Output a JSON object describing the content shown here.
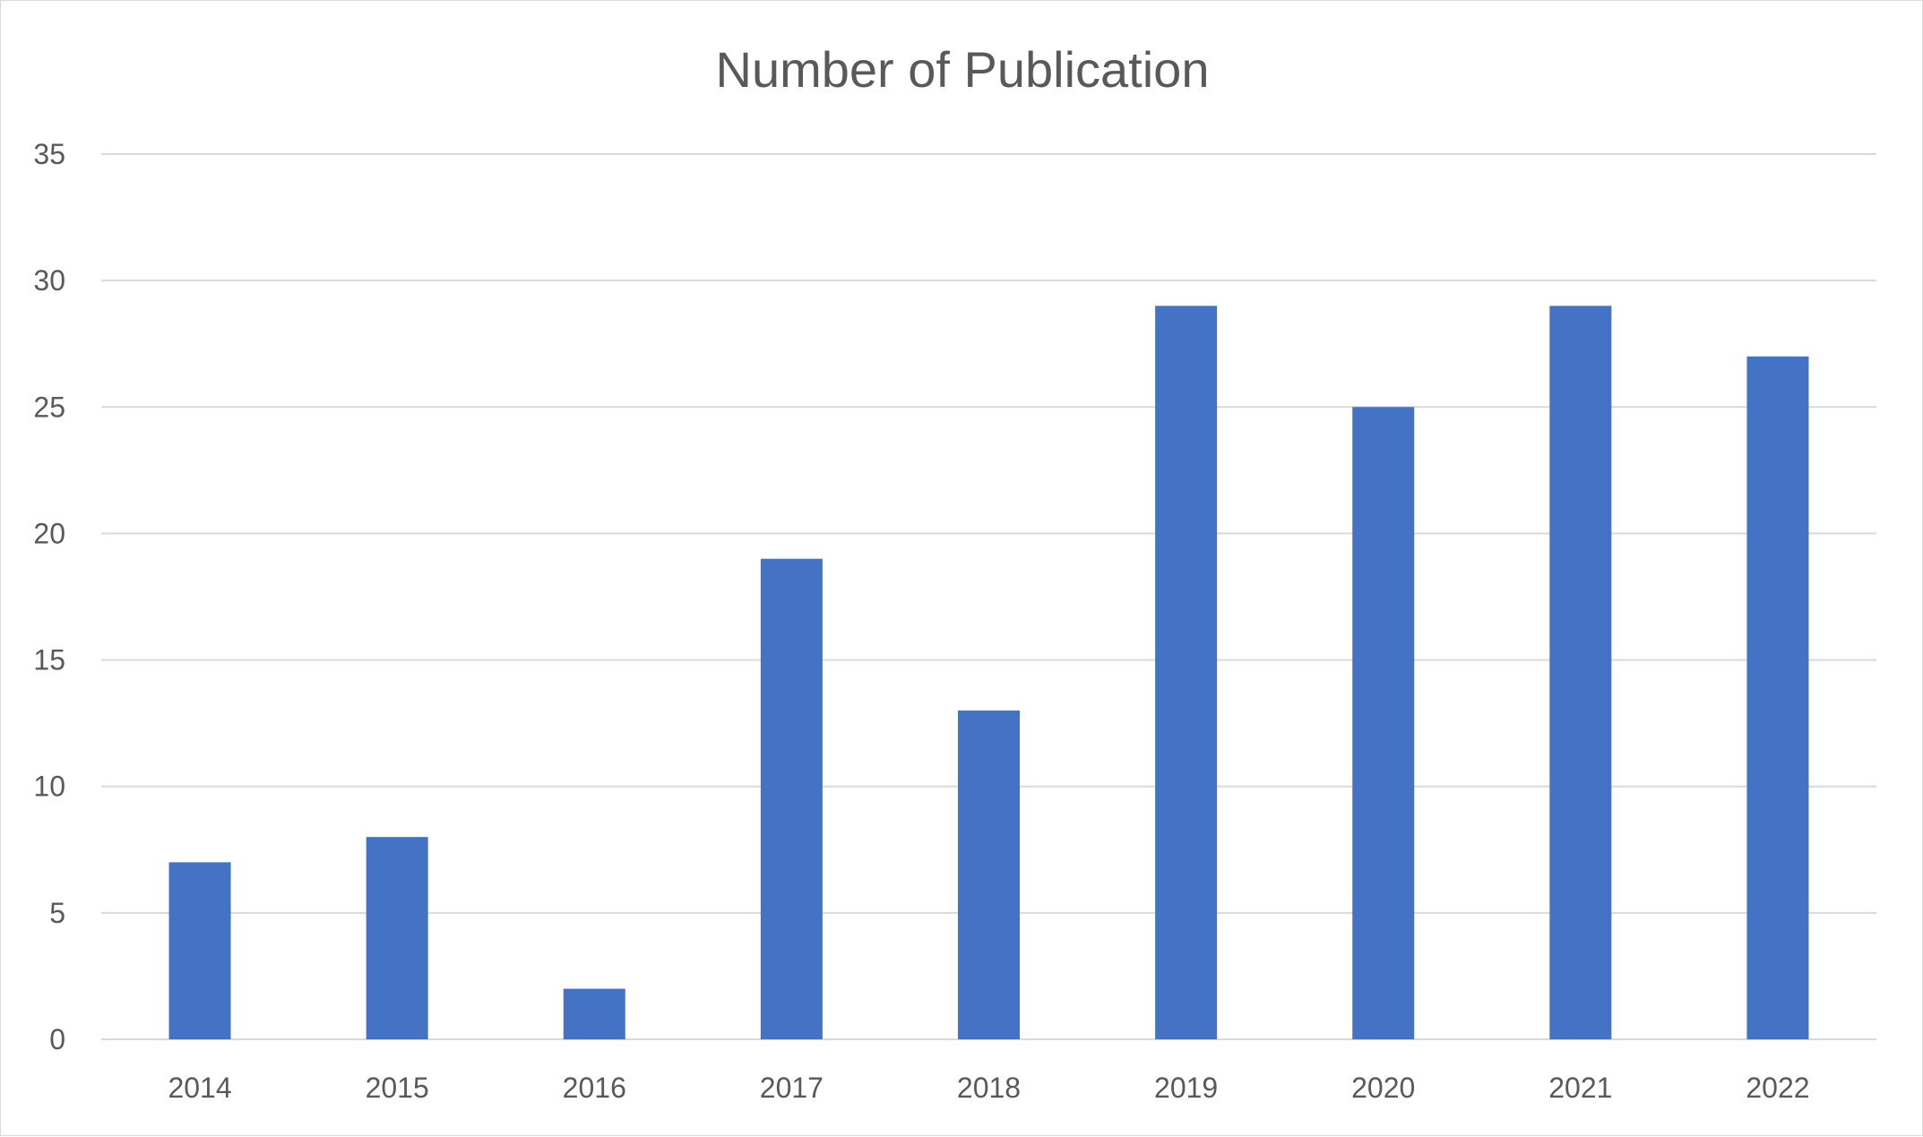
{
  "chart_data": {
    "type": "bar",
    "title": "Number of Publication",
    "categories": [
      "2014",
      "2015",
      "2016",
      "2017",
      "2018",
      "2019",
      "2020",
      "2021",
      "2022"
    ],
    "values": [
      7,
      8,
      2,
      19,
      13,
      29,
      25,
      29,
      27
    ],
    "ylim": [
      0,
      35
    ],
    "yticks": [
      "0",
      "5",
      "10",
      "15",
      "20",
      "25",
      "30",
      "35"
    ],
    "grid": true,
    "legend": "none",
    "bar_color": "#4472C4"
  }
}
